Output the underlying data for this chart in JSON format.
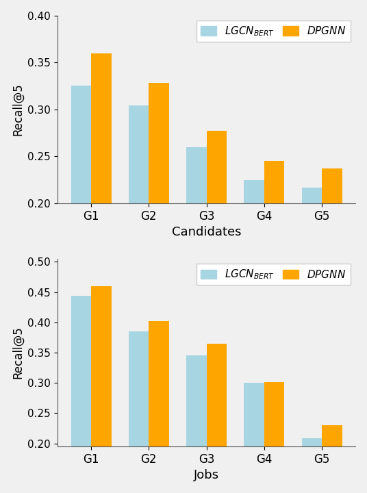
{
  "categories": [
    "G1",
    "G2",
    "G3",
    "G4",
    "G5"
  ],
  "candidates": {
    "lgcn": [
      0.325,
      0.304,
      0.26,
      0.225,
      0.217
    ],
    "dpgnn": [
      0.36,
      0.328,
      0.277,
      0.245,
      0.237
    ]
  },
  "jobs": {
    "lgcn": [
      0.444,
      0.385,
      0.345,
      0.3,
      0.209
    ],
    "dpgnn": [
      0.46,
      0.402,
      0.365,
      0.301,
      0.23
    ]
  },
  "candidates_ylim": [
    0.2,
    0.4
  ],
  "candidates_yticks": [
    0.2,
    0.25,
    0.3,
    0.35,
    0.4
  ],
  "jobs_ylim": [
    0.195,
    0.505
  ],
  "jobs_yticks": [
    0.2,
    0.25,
    0.3,
    0.35,
    0.4,
    0.45,
    0.5
  ],
  "lgcn_color": "#a8d5e2",
  "dpgnn_color": "#FFA500",
  "candidates_xlabel": "Candidates",
  "jobs_xlabel": "Jobs",
  "ylabel": "Recall@5",
  "bar_width": 0.35,
  "bg_color": "#f0f0f0"
}
